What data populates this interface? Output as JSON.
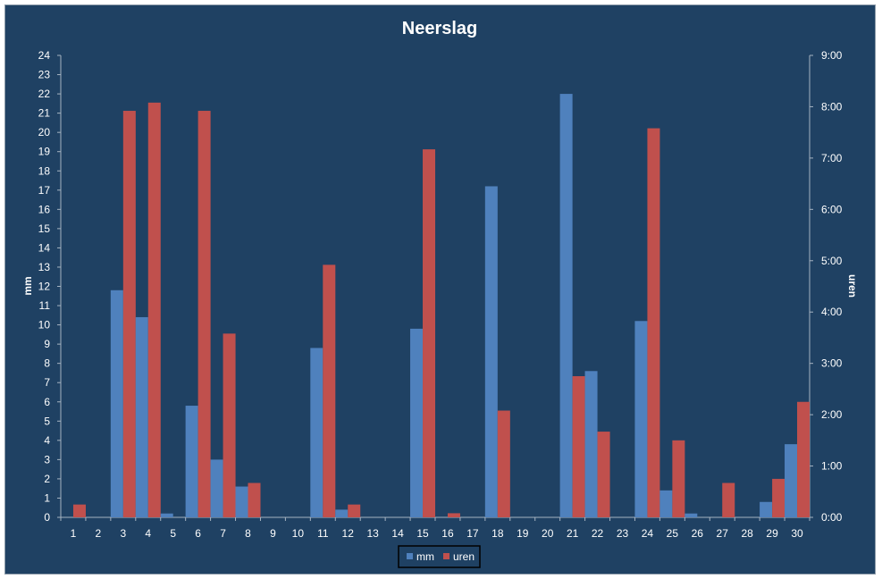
{
  "chart_data": {
    "type": "bar",
    "title": "Neerslag",
    "categories": [
      "1",
      "2",
      "3",
      "4",
      "5",
      "6",
      "7",
      "8",
      "9",
      "10",
      "11",
      "12",
      "13",
      "14",
      "15",
      "16",
      "17",
      "18",
      "19",
      "20",
      "21",
      "22",
      "23",
      "24",
      "25",
      "26",
      "27",
      "28",
      "29",
      "30"
    ],
    "series": [
      {
        "name": "mm",
        "axis": "left",
        "color": "#4f81bd",
        "values": [
          0,
          0,
          11.8,
          10.4,
          0.2,
          5.8,
          3,
          1.6,
          0,
          0,
          8.8,
          0.4,
          0,
          0,
          9.8,
          0,
          0,
          17.2,
          0,
          0,
          22,
          7.6,
          0,
          10.2,
          1.4,
          0.2,
          0,
          0,
          0.8,
          3.8
        ]
      },
      {
        "name": "uren",
        "axis": "right",
        "unit": "hours",
        "color": "#c0504d",
        "values": [
          0.25,
          0,
          7.92,
          8.08,
          0,
          7.92,
          3.58,
          0.67,
          0,
          0,
          4.92,
          0.25,
          0,
          0,
          7.17,
          0.08,
          0,
          2.08,
          0,
          0,
          2.75,
          1.67,
          0,
          7.58,
          1.5,
          0,
          0.67,
          0,
          0.75,
          2.25
        ]
      }
    ],
    "ylabel": "mm",
    "ylim": [
      0,
      24
    ],
    "yticks": [
      "0",
      "1",
      "2",
      "3",
      "4",
      "5",
      "6",
      "7",
      "8",
      "9",
      "10",
      "11",
      "12",
      "13",
      "14",
      "15",
      "16",
      "17",
      "18",
      "19",
      "20",
      "21",
      "22",
      "23",
      "24"
    ],
    "y2label": "uren",
    "y2lim": [
      0,
      9
    ],
    "y2ticks": [
      "0:00",
      "1:00",
      "2:00",
      "3:00",
      "4:00",
      "5:00",
      "6:00",
      "7:00",
      "8:00",
      "9:00"
    ],
    "grid": false,
    "legend": "bottom",
    "background": "#1f4163",
    "text_color": "#ffffff"
  }
}
